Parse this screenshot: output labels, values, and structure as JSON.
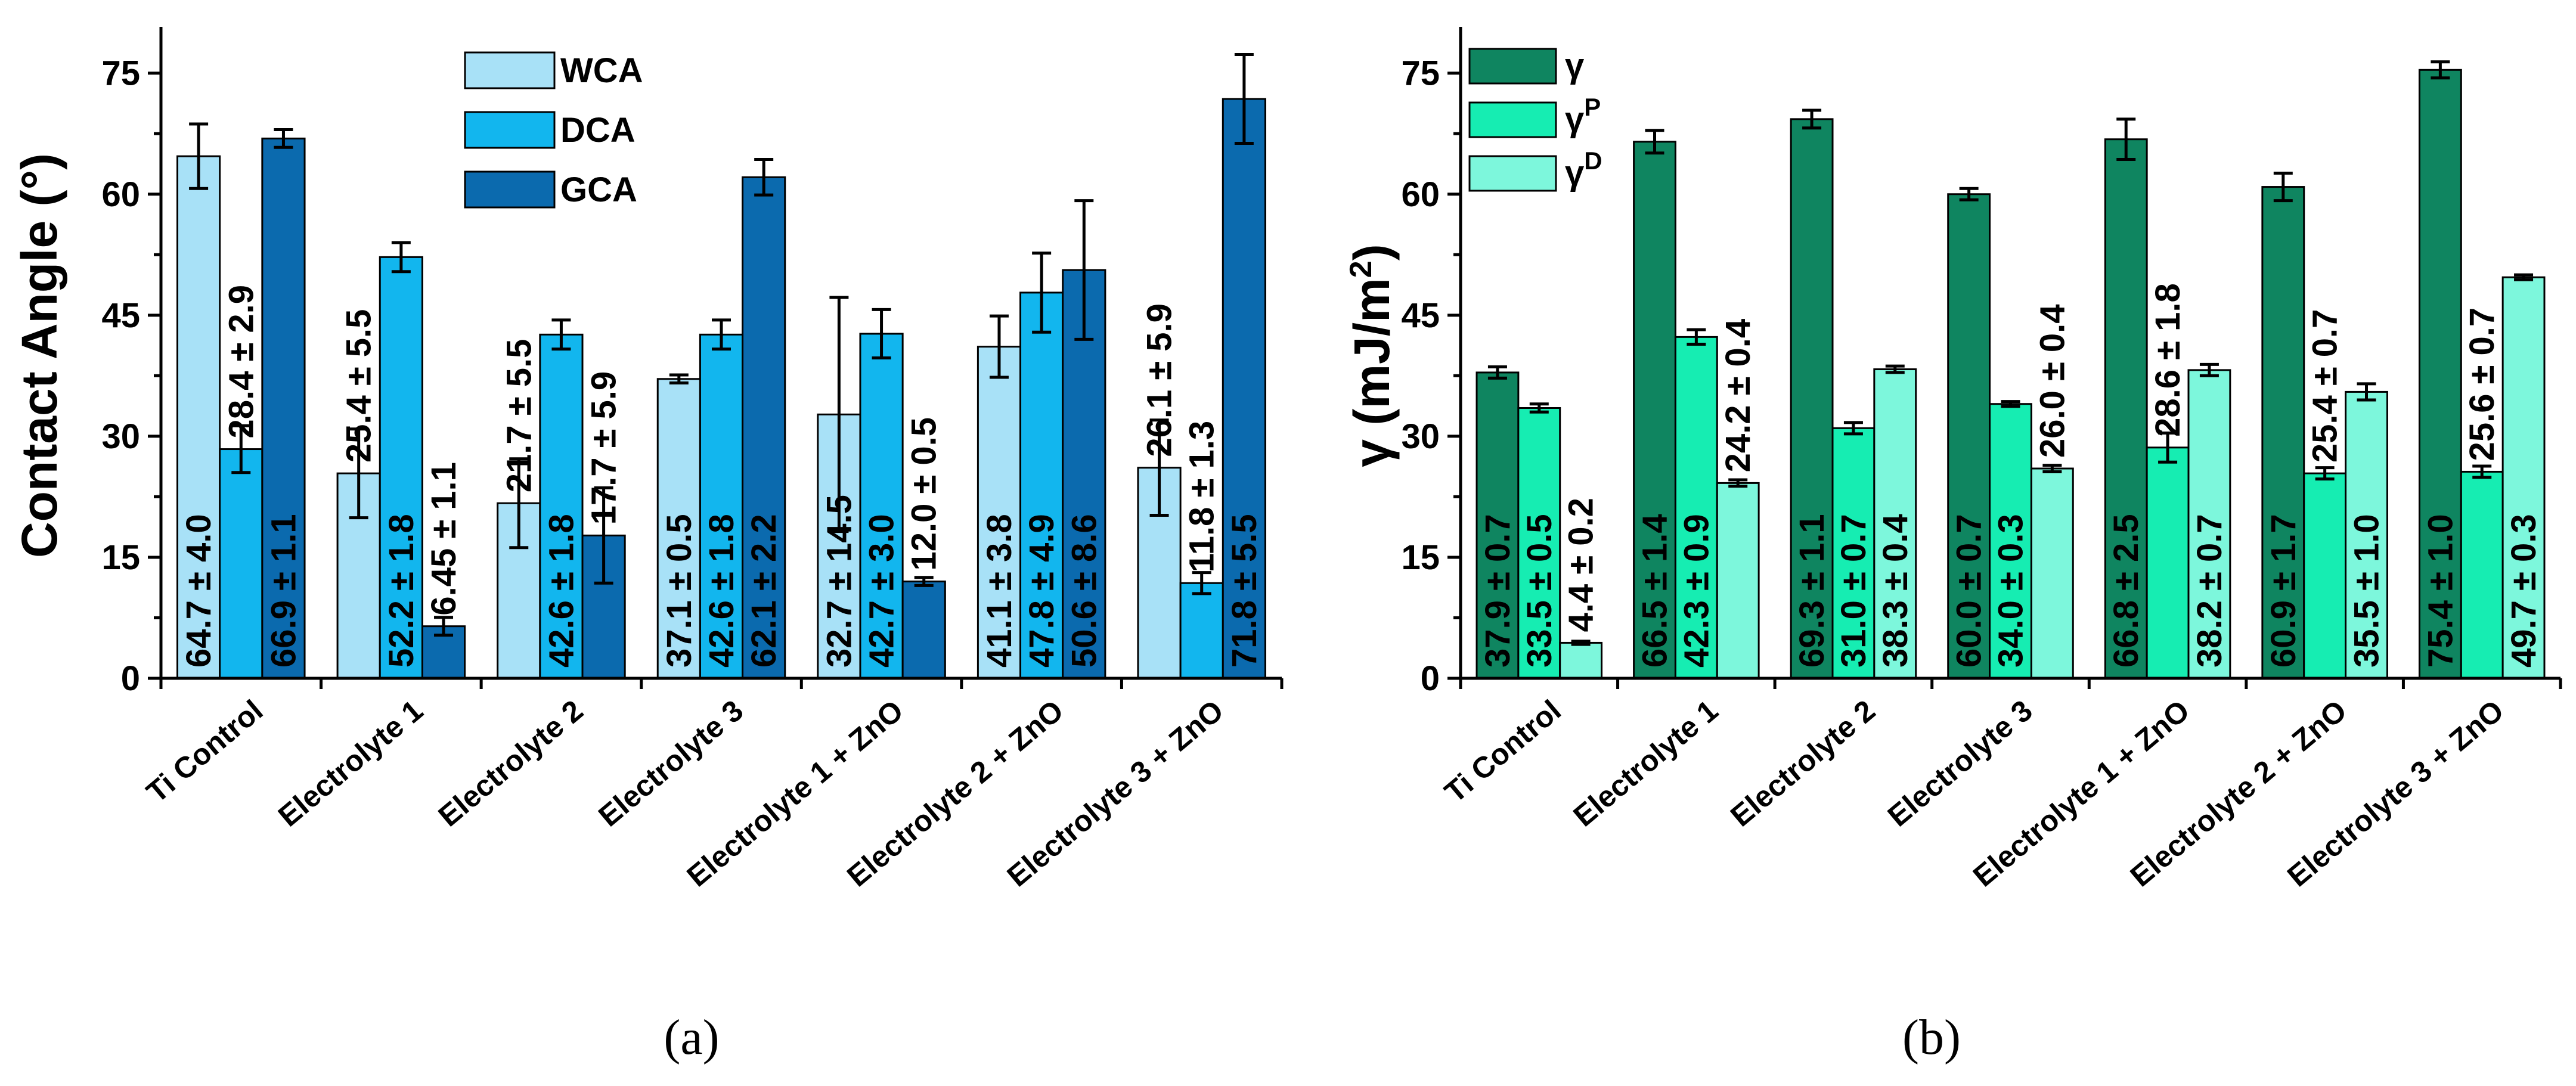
{
  "chart_data": [
    {
      "type": "bar",
      "panel": "(a)",
      "title": "",
      "xlabel": "",
      "ylabel": "Contact Angle (°)",
      "ylim": [
        0,
        80
      ],
      "yticks": [
        0,
        15,
        30,
        45,
        60,
        75
      ],
      "legend_position": "top-center",
      "categories": [
        "Ti Control",
        "Electrolyte 1",
        "Electrolyte 2",
        "Electrolyte 3",
        "Electrolyte 1 + ZnO",
        "Electrolyte 2 + ZnO",
        "Electrolyte 3 + ZnO"
      ],
      "series": [
        {
          "name": "WCA",
          "color": "#a8e1f7",
          "values": [
            64.7,
            25.4,
            21.7,
            37.1,
            32.7,
            41.1,
            26.1
          ],
          "errors": [
            4.0,
            5.5,
            5.5,
            0.5,
            14.5,
            3.8,
            5.9
          ],
          "labels": [
            "64.7 ± 4.0",
            "25.4 ± 5.5",
            "21.7 ± 5.5",
            "37.1 ± 0.5",
            "32.7 ± 14.5",
            "41.1 ± 3.8",
            "26.1 ± 5.9"
          ]
        },
        {
          "name": "DCA",
          "color": "#12b6ee",
          "values": [
            28.4,
            52.2,
            42.6,
            42.6,
            42.7,
            47.8,
            11.8
          ],
          "errors": [
            2.9,
            1.8,
            1.8,
            1.8,
            3.0,
            4.9,
            1.3
          ],
          "labels": [
            "28.4 ± 2.9",
            "52.2 ± 1.8",
            "42.6 ± 1.8",
            "42.6 ± 1.8",
            "42.7 ± 3.0",
            "47.8 ± 4.9",
            "11.8 ± 1.3"
          ]
        },
        {
          "name": "GCA",
          "color": "#0b6aae",
          "values": [
            66.9,
            6.45,
            17.7,
            62.1,
            12.0,
            50.6,
            71.8
          ],
          "errors": [
            1.1,
            1.1,
            5.9,
            2.2,
            0.5,
            8.6,
            5.5
          ],
          "labels": [
            "66.9 ± 1.1",
            "6.45 ± 1.1",
            "17.7 ± 5.9",
            "62.1 ± 2.2",
            "12.0 ± 0.5",
            "50.6 ± 8.6",
            "71.8 ± 5.5"
          ]
        }
      ]
    },
    {
      "type": "bar",
      "panel": "(b)",
      "title": "",
      "xlabel": "",
      "ylabel": "γ (mJ/m²)",
      "ylim": [
        0,
        80
      ],
      "yticks": [
        0,
        15,
        30,
        45,
        60,
        75
      ],
      "legend_position": "top-left",
      "categories": [
        "Ti Control",
        "Electrolyte 1",
        "Electrolyte 2",
        "Electrolyte 3",
        "Electrolyte 1 + ZnO",
        "Electrolyte 2 + ZnO",
        "Electrolyte 3 + ZnO"
      ],
      "series": [
        {
          "name": "γ",
          "sup": "",
          "color": "#0f8560",
          "values": [
            37.9,
            66.5,
            69.3,
            60.0,
            66.8,
            60.9,
            75.4
          ],
          "errors": [
            0.7,
            1.4,
            1.1,
            0.7,
            2.5,
            1.7,
            1.0
          ],
          "labels": [
            "37.9 ± 0.7",
            "66.5 ± 1.4",
            "69.3 ± 1.1",
            "60.0 ± 0.7",
            "66.8 ± 2.5",
            "60.9 ± 1.7",
            "75.4 ± 1.0"
          ]
        },
        {
          "name": "γ",
          "sup": "P",
          "color": "#16edb2",
          "values": [
            33.5,
            42.3,
            31.0,
            34.0,
            28.6,
            25.4,
            25.6
          ],
          "errors": [
            0.5,
            0.9,
            0.7,
            0.3,
            1.8,
            0.7,
            0.7
          ],
          "labels": [
            "33.5 ± 0.5",
            "42.3 ± 0.9",
            "31.0 ± 0.7",
            "34.0 ± 0.3",
            "28.6 ± 1.8",
            "25.4 ± 0.7",
            "25.6 ± 0.7"
          ]
        },
        {
          "name": "γ",
          "sup": "D",
          "color": "#7df7dc",
          "values": [
            4.4,
            24.2,
            38.3,
            26.0,
            38.2,
            35.5,
            49.7
          ],
          "errors": [
            0.2,
            0.4,
            0.4,
            0.4,
            0.7,
            1.0,
            0.3
          ],
          "labels": [
            "4.4 ± 0.2",
            "24.2 ± 0.4",
            "38.3 ± 0.4",
            "26.0 ± 0.4",
            "38.2 ± 0.7",
            "35.5 ± 1.0",
            "49.7 ± 0.3"
          ]
        }
      ]
    }
  ]
}
